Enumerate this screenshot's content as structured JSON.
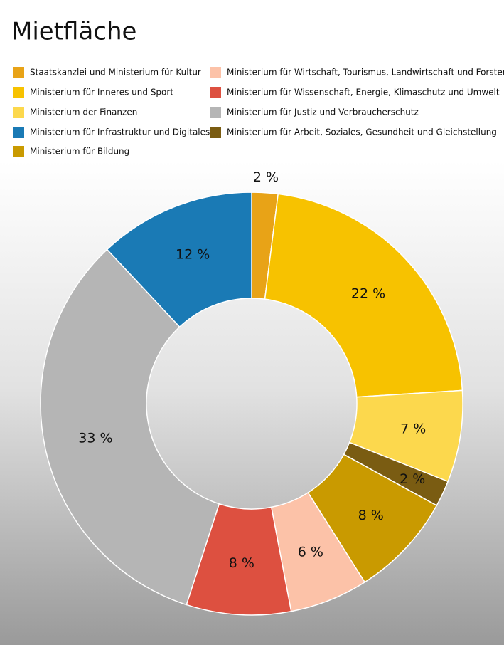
{
  "chart_data": {
    "type": "donut",
    "title": "Mietfläche",
    "slices": [
      {
        "name": "Staatskanzlei und Ministerium für Kultur",
        "color": "#e8a317",
        "value": 2,
        "value_label": "2 %"
      },
      {
        "name": "Ministerium für Inneres und Sport",
        "color": "#f7c200",
        "value": 22,
        "value_label": "22 %"
      },
      {
        "name": "Ministerium der Finanzen",
        "color": "#fcd84d",
        "value": 7,
        "value_label": "7 %"
      },
      {
        "name": "Ministerium für Arbeit, Soziales, Gesundheit und Gleichstellung",
        "color": "#7a5c12",
        "value": 2,
        "value_label": "2 %"
      },
      {
        "name": "Ministerium für Bildung",
        "color": "#c99a00",
        "value": 8,
        "value_label": "8 %"
      },
      {
        "name": "Ministerium für Wirtschaft, Tourismus, Landwirtschaft und Forsten",
        "color": "#fcc2a8",
        "value": 6,
        "value_label": "6 %"
      },
      {
        "name": "Ministerium für Wissenschaft, Energie, Klimaschutz und Umwelt",
        "color": "#dd5040",
        "value": 8,
        "value_label": "8 %"
      },
      {
        "name": "Ministerium für Justiz und Verbraucherschutz",
        "color": "#b5b5b5",
        "value": 33,
        "value_label": "33 %"
      },
      {
        "name": "Ministerium für Infrastruktur und Digitales",
        "color": "#1a7ab5",
        "value": 12,
        "value_label": "12 %"
      }
    ]
  }
}
